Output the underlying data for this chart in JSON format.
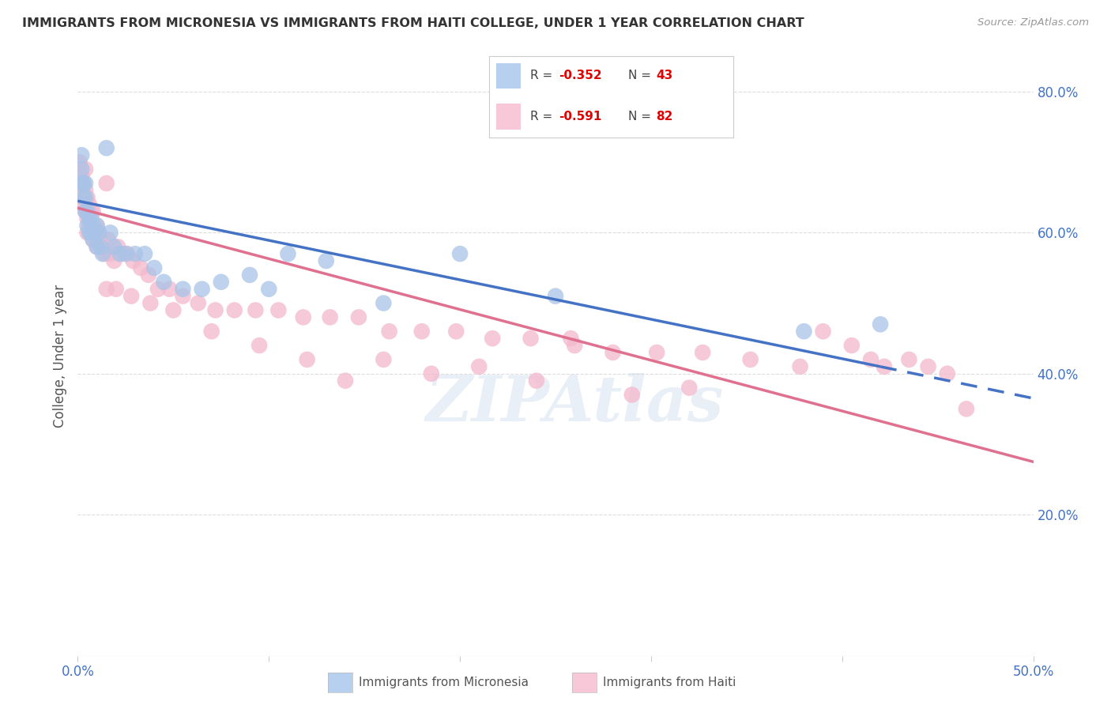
{
  "title": "IMMIGRANTS FROM MICRONESIA VS IMMIGRANTS FROM HAITI COLLEGE, UNDER 1 YEAR CORRELATION CHART",
  "source": "Source: ZipAtlas.com",
  "ylabel": "College, Under 1 year",
  "xlim": [
    0.0,
    0.5
  ],
  "ylim": [
    0.0,
    0.85
  ],
  "xticks": [
    0.0,
    0.1,
    0.2,
    0.3,
    0.4,
    0.5
  ],
  "xticklabels": [
    "0.0%",
    "",
    "",
    "",
    "",
    "50.0%"
  ],
  "yticks_right": [
    0.2,
    0.4,
    0.6,
    0.8
  ],
  "yticklabels_right": [
    "20.0%",
    "40.0%",
    "60.0%",
    "80.0%"
  ],
  "micronesia_color": "#a8c4e8",
  "haiti_color": "#f4b8cc",
  "micronesia_line_color": "#4472c4",
  "haiti_line_color": "#e07090",
  "legend_box_micronesia": "#b8d0f0",
  "legend_box_haiti": "#f8c8d8",
  "watermark": "ZIPAtlas",
  "grid_color": "#dddddd",
  "background_color": "#ffffff",
  "micronesia_scatter_x": [
    0.002,
    0.002,
    0.002,
    0.003,
    0.003,
    0.004,
    0.004,
    0.004,
    0.005,
    0.005,
    0.006,
    0.006,
    0.007,
    0.007,
    0.008,
    0.008,
    0.009,
    0.01,
    0.01,
    0.011,
    0.012,
    0.013,
    0.015,
    0.017,
    0.019,
    0.022,
    0.025,
    0.03,
    0.035,
    0.04,
    0.045,
    0.055,
    0.065,
    0.075,
    0.09,
    0.1,
    0.11,
    0.13,
    0.16,
    0.2,
    0.25,
    0.38,
    0.42
  ],
  "micronesia_scatter_y": [
    0.67,
    0.69,
    0.71,
    0.65,
    0.67,
    0.63,
    0.65,
    0.67,
    0.61,
    0.63,
    0.6,
    0.62,
    0.6,
    0.62,
    0.59,
    0.61,
    0.6,
    0.58,
    0.61,
    0.6,
    0.58,
    0.57,
    0.72,
    0.6,
    0.58,
    0.57,
    0.57,
    0.57,
    0.57,
    0.55,
    0.53,
    0.52,
    0.52,
    0.53,
    0.54,
    0.52,
    0.57,
    0.56,
    0.5,
    0.57,
    0.51,
    0.46,
    0.47
  ],
  "haiti_scatter_x": [
    0.001,
    0.001,
    0.002,
    0.002,
    0.003,
    0.003,
    0.004,
    0.004,
    0.004,
    0.005,
    0.005,
    0.006,
    0.006,
    0.007,
    0.007,
    0.008,
    0.008,
    0.009,
    0.01,
    0.01,
    0.011,
    0.012,
    0.013,
    0.014,
    0.015,
    0.016,
    0.017,
    0.019,
    0.021,
    0.023,
    0.026,
    0.029,
    0.033,
    0.037,
    0.042,
    0.048,
    0.055,
    0.063,
    0.072,
    0.082,
    0.093,
    0.105,
    0.118,
    0.132,
    0.147,
    0.163,
    0.18,
    0.198,
    0.217,
    0.237,
    0.258,
    0.28,
    0.303,
    0.327,
    0.352,
    0.378,
    0.39,
    0.405,
    0.415,
    0.422,
    0.435,
    0.445,
    0.455,
    0.465,
    0.32,
    0.29,
    0.26,
    0.24,
    0.21,
    0.185,
    0.16,
    0.14,
    0.12,
    0.095,
    0.07,
    0.05,
    0.038,
    0.028,
    0.02,
    0.015,
    0.008,
    0.005
  ],
  "haiti_scatter_y": [
    0.67,
    0.7,
    0.65,
    0.68,
    0.64,
    0.67,
    0.63,
    0.66,
    0.69,
    0.62,
    0.65,
    0.61,
    0.64,
    0.6,
    0.63,
    0.6,
    0.63,
    0.6,
    0.58,
    0.61,
    0.6,
    0.59,
    0.58,
    0.57,
    0.67,
    0.59,
    0.57,
    0.56,
    0.58,
    0.57,
    0.57,
    0.56,
    0.55,
    0.54,
    0.52,
    0.52,
    0.51,
    0.5,
    0.49,
    0.49,
    0.49,
    0.49,
    0.48,
    0.48,
    0.48,
    0.46,
    0.46,
    0.46,
    0.45,
    0.45,
    0.45,
    0.43,
    0.43,
    0.43,
    0.42,
    0.41,
    0.46,
    0.44,
    0.42,
    0.41,
    0.42,
    0.41,
    0.4,
    0.35,
    0.38,
    0.37,
    0.44,
    0.39,
    0.41,
    0.4,
    0.42,
    0.39,
    0.42,
    0.44,
    0.46,
    0.49,
    0.5,
    0.51,
    0.52,
    0.52,
    0.59,
    0.6
  ],
  "micro_line_x0": 0.0,
  "micro_line_x1": 0.42,
  "micro_line_x2": 0.5,
  "micro_line_y0": 0.645,
  "micro_line_y1": 0.41,
  "micro_line_y2": 0.365,
  "haiti_line_x0": 0.0,
  "haiti_line_x1": 0.5,
  "haiti_line_y0": 0.635,
  "haiti_line_y1": 0.275
}
